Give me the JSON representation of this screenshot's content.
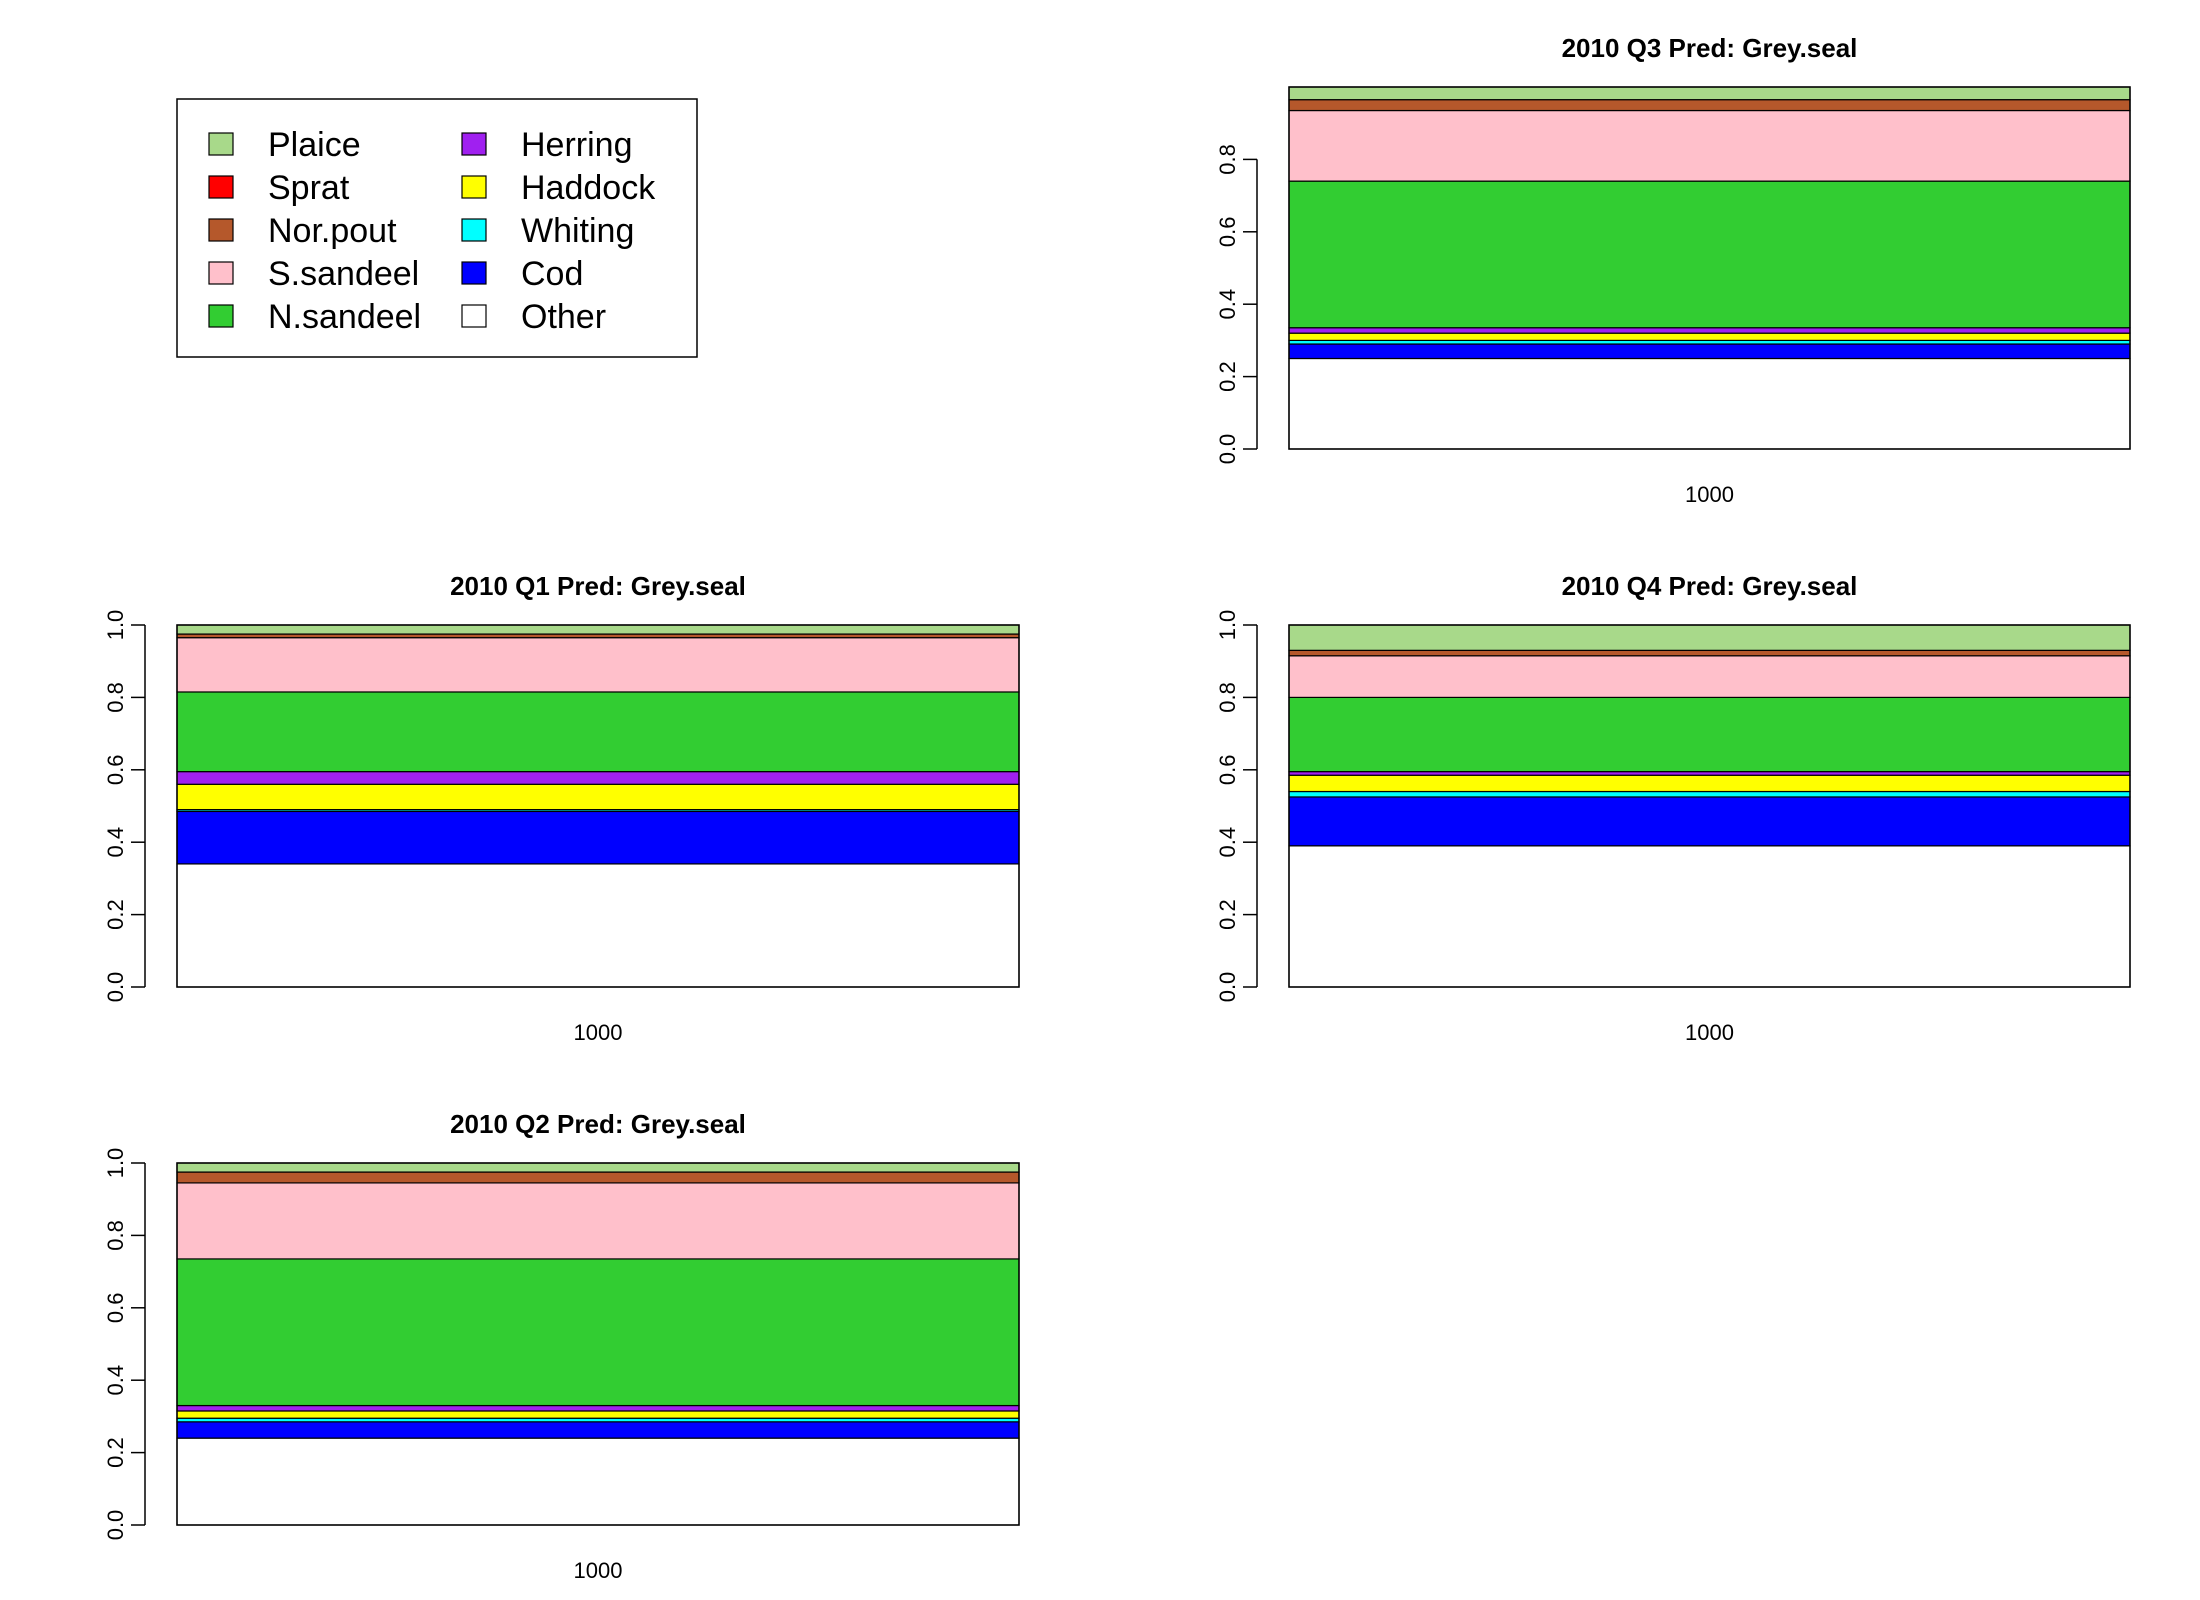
{
  "legend": {
    "items": [
      {
        "name": "Plaice",
        "color": "#a8d98a"
      },
      {
        "name": "Sprat",
        "color": "#ff0000"
      },
      {
        "name": "Nor.pout",
        "color": "#b5582b"
      },
      {
        "name": "S.sandeel",
        "color": "#ffc0cb"
      },
      {
        "name": "N.sandeel",
        "color": "#32cd32"
      },
      {
        "name": "Herring",
        "color": "#a020f0"
      },
      {
        "name": "Haddock",
        "color": "#ffff00"
      },
      {
        "name": "Whiting",
        "color": "#00ffff"
      },
      {
        "name": "Cod",
        "color": "#0000ff"
      },
      {
        "name": "Other",
        "color": "#ffffff"
      }
    ]
  },
  "chart_data": [
    {
      "type": "bar",
      "title": "2010 Q3  Pred: Grey.seal",
      "categories": [
        "1000"
      ],
      "ylim": [
        0,
        1
      ],
      "yticks": [
        "0.0",
        "0.2",
        "0.4",
        "0.6",
        "0.8"
      ],
      "stack_order": [
        "Other",
        "Cod",
        "Whiting",
        "Haddock",
        "Herring",
        "N.sandeel",
        "S.sandeel",
        "Nor.pout",
        "Sprat",
        "Plaice"
      ],
      "values": {
        "Other": 0.25,
        "Cod": 0.04,
        "Whiting": 0.01,
        "Haddock": 0.02,
        "Herring": 0.015,
        "N.sandeel": 0.405,
        "S.sandeel": 0.195,
        "Nor.pout": 0.03,
        "Sprat": 0.0,
        "Plaice": 0.035
      }
    },
    {
      "type": "bar",
      "title": "2010 Q1  Pred: Grey.seal",
      "categories": [
        "1000"
      ],
      "ylim": [
        0,
        1
      ],
      "yticks": [
        "0.0",
        "0.2",
        "0.4",
        "0.6",
        "0.8",
        "1.0"
      ],
      "stack_order": [
        "Other",
        "Cod",
        "Whiting",
        "Haddock",
        "Herring",
        "N.sandeel",
        "S.sandeel",
        "Nor.pout",
        "Sprat",
        "Plaice"
      ],
      "values": {
        "Other": 0.34,
        "Cod": 0.145,
        "Whiting": 0.005,
        "Haddock": 0.07,
        "Herring": 0.035,
        "N.sandeel": 0.22,
        "S.sandeel": 0.15,
        "Nor.pout": 0.01,
        "Sprat": 0.0,
        "Plaice": 0.025
      }
    },
    {
      "type": "bar",
      "title": "2010 Q4  Pred: Grey.seal",
      "categories": [
        "1000"
      ],
      "ylim": [
        0,
        1
      ],
      "yticks": [
        "0.0",
        "0.2",
        "0.4",
        "0.6",
        "0.8",
        "1.0"
      ],
      "stack_order": [
        "Other",
        "Cod",
        "Whiting",
        "Haddock",
        "Herring",
        "N.sandeel",
        "S.sandeel",
        "Nor.pout",
        "Sprat",
        "Plaice"
      ],
      "values": {
        "Other": 0.39,
        "Cod": 0.135,
        "Whiting": 0.015,
        "Haddock": 0.045,
        "Herring": 0.01,
        "N.sandeel": 0.205,
        "S.sandeel": 0.115,
        "Nor.pout": 0.015,
        "Sprat": 0.0,
        "Plaice": 0.07
      }
    },
    {
      "type": "bar",
      "title": "2010 Q2  Pred: Grey.seal",
      "categories": [
        "1000"
      ],
      "ylim": [
        0,
        1
      ],
      "yticks": [
        "0.0",
        "0.2",
        "0.4",
        "0.6",
        "0.8",
        "1.0"
      ],
      "stack_order": [
        "Other",
        "Cod",
        "Whiting",
        "Haddock",
        "Herring",
        "N.sandeel",
        "S.sandeel",
        "Nor.pout",
        "Sprat",
        "Plaice"
      ],
      "values": {
        "Other": 0.24,
        "Cod": 0.045,
        "Whiting": 0.01,
        "Haddock": 0.02,
        "Herring": 0.015,
        "N.sandeel": 0.405,
        "S.sandeel": 0.21,
        "Nor.pout": 0.03,
        "Sprat": 0.0,
        "Plaice": 0.025
      }
    }
  ]
}
